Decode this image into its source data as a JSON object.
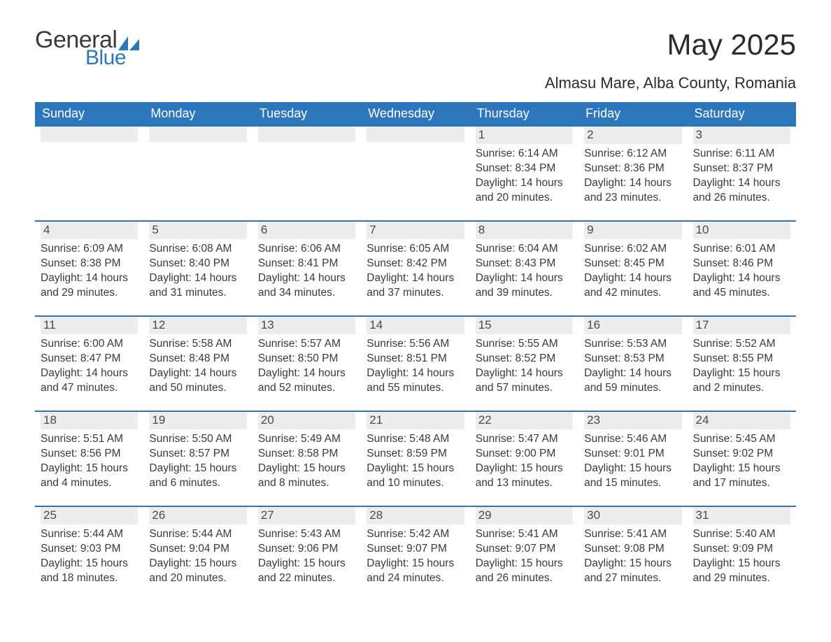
{
  "brand": {
    "word1": "General",
    "word2": "Blue",
    "accent_color": "#2d76bb",
    "text_color": "#3b3b3b"
  },
  "header": {
    "month_title": "May 2025",
    "location": "Almasu Mare, Alba County, Romania"
  },
  "styling": {
    "page_bg": "#ffffff",
    "header_bar_bg": "#2d76bb",
    "header_bar_text": "#ffffff",
    "daynum_bg": "#ededed",
    "row_divider": "#2d76bb",
    "body_text": "#3a3a3a",
    "title_fontsize_pt": 32,
    "location_fontsize_pt": 17,
    "dow_fontsize_pt": 14,
    "day_fontsize_pt": 12
  },
  "days_of_week": [
    "Sunday",
    "Monday",
    "Tuesday",
    "Wednesday",
    "Thursday",
    "Friday",
    "Saturday"
  ],
  "weeks": [
    [
      null,
      null,
      null,
      null,
      {
        "n": "1",
        "sunrise": "6:14 AM",
        "sunset": "8:34 PM",
        "daylight": "14 hours and 20 minutes."
      },
      {
        "n": "2",
        "sunrise": "6:12 AM",
        "sunset": "8:36 PM",
        "daylight": "14 hours and 23 minutes."
      },
      {
        "n": "3",
        "sunrise": "6:11 AM",
        "sunset": "8:37 PM",
        "daylight": "14 hours and 26 minutes."
      }
    ],
    [
      {
        "n": "4",
        "sunrise": "6:09 AM",
        "sunset": "8:38 PM",
        "daylight": "14 hours and 29 minutes."
      },
      {
        "n": "5",
        "sunrise": "6:08 AM",
        "sunset": "8:40 PM",
        "daylight": "14 hours and 31 minutes."
      },
      {
        "n": "6",
        "sunrise": "6:06 AM",
        "sunset": "8:41 PM",
        "daylight": "14 hours and 34 minutes."
      },
      {
        "n": "7",
        "sunrise": "6:05 AM",
        "sunset": "8:42 PM",
        "daylight": "14 hours and 37 minutes."
      },
      {
        "n": "8",
        "sunrise": "6:04 AM",
        "sunset": "8:43 PM",
        "daylight": "14 hours and 39 minutes."
      },
      {
        "n": "9",
        "sunrise": "6:02 AM",
        "sunset": "8:45 PM",
        "daylight": "14 hours and 42 minutes."
      },
      {
        "n": "10",
        "sunrise": "6:01 AM",
        "sunset": "8:46 PM",
        "daylight": "14 hours and 45 minutes."
      }
    ],
    [
      {
        "n": "11",
        "sunrise": "6:00 AM",
        "sunset": "8:47 PM",
        "daylight": "14 hours and 47 minutes."
      },
      {
        "n": "12",
        "sunrise": "5:58 AM",
        "sunset": "8:48 PM",
        "daylight": "14 hours and 50 minutes."
      },
      {
        "n": "13",
        "sunrise": "5:57 AM",
        "sunset": "8:50 PM",
        "daylight": "14 hours and 52 minutes."
      },
      {
        "n": "14",
        "sunrise": "5:56 AM",
        "sunset": "8:51 PM",
        "daylight": "14 hours and 55 minutes."
      },
      {
        "n": "15",
        "sunrise": "5:55 AM",
        "sunset": "8:52 PM",
        "daylight": "14 hours and 57 minutes."
      },
      {
        "n": "16",
        "sunrise": "5:53 AM",
        "sunset": "8:53 PM",
        "daylight": "14 hours and 59 minutes."
      },
      {
        "n": "17",
        "sunrise": "5:52 AM",
        "sunset": "8:55 PM",
        "daylight": "15 hours and 2 minutes."
      }
    ],
    [
      {
        "n": "18",
        "sunrise": "5:51 AM",
        "sunset": "8:56 PM",
        "daylight": "15 hours and 4 minutes."
      },
      {
        "n": "19",
        "sunrise": "5:50 AM",
        "sunset": "8:57 PM",
        "daylight": "15 hours and 6 minutes."
      },
      {
        "n": "20",
        "sunrise": "5:49 AM",
        "sunset": "8:58 PM",
        "daylight": "15 hours and 8 minutes."
      },
      {
        "n": "21",
        "sunrise": "5:48 AM",
        "sunset": "8:59 PM",
        "daylight": "15 hours and 10 minutes."
      },
      {
        "n": "22",
        "sunrise": "5:47 AM",
        "sunset": "9:00 PM",
        "daylight": "15 hours and 13 minutes."
      },
      {
        "n": "23",
        "sunrise": "5:46 AM",
        "sunset": "9:01 PM",
        "daylight": "15 hours and 15 minutes."
      },
      {
        "n": "24",
        "sunrise": "5:45 AM",
        "sunset": "9:02 PM",
        "daylight": "15 hours and 17 minutes."
      }
    ],
    [
      {
        "n": "25",
        "sunrise": "5:44 AM",
        "sunset": "9:03 PM",
        "daylight": "15 hours and 18 minutes."
      },
      {
        "n": "26",
        "sunrise": "5:44 AM",
        "sunset": "9:04 PM",
        "daylight": "15 hours and 20 minutes."
      },
      {
        "n": "27",
        "sunrise": "5:43 AM",
        "sunset": "9:06 PM",
        "daylight": "15 hours and 22 minutes."
      },
      {
        "n": "28",
        "sunrise": "5:42 AM",
        "sunset": "9:07 PM",
        "daylight": "15 hours and 24 minutes."
      },
      {
        "n": "29",
        "sunrise": "5:41 AM",
        "sunset": "9:07 PM",
        "daylight": "15 hours and 26 minutes."
      },
      {
        "n": "30",
        "sunrise": "5:41 AM",
        "sunset": "9:08 PM",
        "daylight": "15 hours and 27 minutes."
      },
      {
        "n": "31",
        "sunrise": "5:40 AM",
        "sunset": "9:09 PM",
        "daylight": "15 hours and 29 minutes."
      }
    ]
  ],
  "labels": {
    "sunrise_prefix": "Sunrise: ",
    "sunset_prefix": "Sunset: ",
    "daylight_prefix": "Daylight: "
  }
}
